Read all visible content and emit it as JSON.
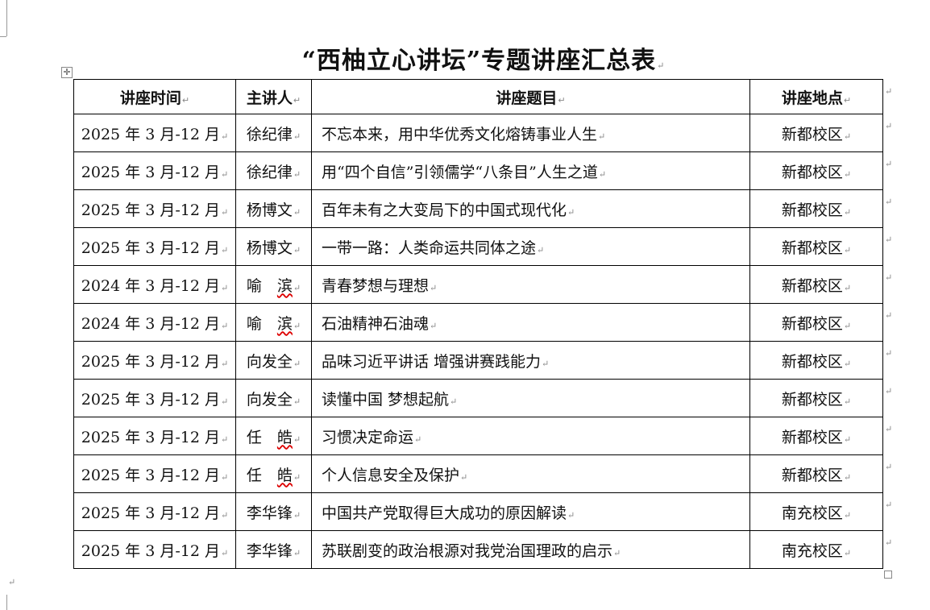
{
  "title": "“西柚立心讲坛”专题讲座汇总表",
  "table": {
    "headers": [
      "讲座时间",
      "主讲人",
      "讲座题目",
      "讲座地点"
    ],
    "rows": [
      {
        "time": "2025 年 3 月-12 月",
        "speaker": "徐纪律",
        "topic": "不忘本来，用中华优秀文化熔铸事业人生",
        "place": "新都校区"
      },
      {
        "time": "2025 年 3 月-12 月",
        "speaker": "徐纪律",
        "topic": "用“四个自信”引领儒学“八条目”人生之道",
        "place": "新都校区"
      },
      {
        "time": "2025 年 3 月-12 月",
        "speaker": "杨博文",
        "topic": "百年未有之大变局下的中国式现代化",
        "place": "新都校区"
      },
      {
        "time": "2025 年 3 月-12 月",
        "speaker": "杨博文",
        "topic": "一带一路：人类命运共同体之途",
        "place": "新都校区"
      },
      {
        "time": "2024 年 3 月-12 月",
        "speaker": "喻　滨",
        "topic": "青春梦想与理想",
        "place": "新都校区"
      },
      {
        "time": "2024 年 3 月-12 月",
        "speaker": "喻　滨",
        "topic": "石油精神石油魂",
        "place": "新都校区"
      },
      {
        "time": "2025 年 3 月-12 月",
        "speaker": "向发全",
        "topic": "品味习近平讲话 增强讲赛践能力",
        "place": "新都校区"
      },
      {
        "time": "2025 年 3 月-12 月",
        "speaker": "向发全",
        "topic": "读懂中国 梦想起航",
        "place": "新都校区"
      },
      {
        "time": "2025 年 3 月-12 月",
        "speaker": "任　皓",
        "topic": "习惯决定命运",
        "place": "新都校区"
      },
      {
        "time": "2025 年 3 月-12 月",
        "speaker": "任　皓",
        "topic": "个人信息安全及保护",
        "place": "新都校区"
      },
      {
        "time": "2025 年 3 月-12 月",
        "speaker": "李华锋",
        "topic": "中国共产党取得巨大成功的原因解读",
        "place": "南充校区"
      },
      {
        "time": "2025 年 3 月-12 月",
        "speaker": "李华锋",
        "topic": "苏联剧变的政治根源对我党治国理政的启示",
        "place": "南充校区"
      }
    ]
  }
}
